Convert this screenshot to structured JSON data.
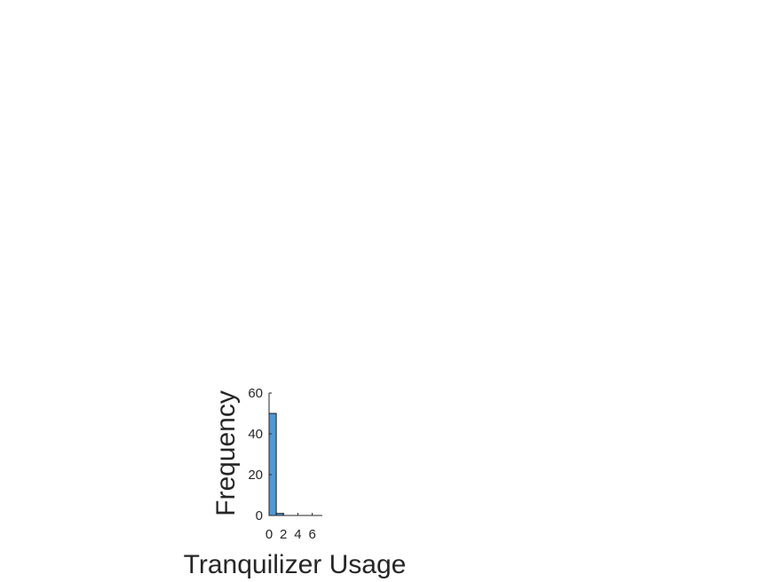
{
  "chart_data": {
    "type": "bar",
    "xlabel": "Tranquilizer Usage",
    "ylabel": "Frequency",
    "xlim": [
      0,
      7.4
    ],
    "ylim": [
      0,
      60
    ],
    "xticks": [
      "0",
      "2",
      "4",
      "6"
    ],
    "yticks": [
      "0",
      "20",
      "40",
      "60"
    ],
    "bin_width": 1,
    "bins": [
      {
        "x0": 0,
        "x1": 1,
        "count": 50
      },
      {
        "x0": 1,
        "x1": 2,
        "count": 1
      },
      {
        "x0": 2,
        "x1": 3,
        "count": 0
      },
      {
        "x0": 3,
        "x1": 4,
        "count": 0
      },
      {
        "x0": 4,
        "x1": 5,
        "count": 0
      },
      {
        "x0": 5,
        "x1": 6,
        "count": 0
      },
      {
        "x0": 6,
        "x1": 7,
        "count": 0
      }
    ],
    "bar_color": "#4d9ad6",
    "grid": false,
    "legend": "none"
  }
}
